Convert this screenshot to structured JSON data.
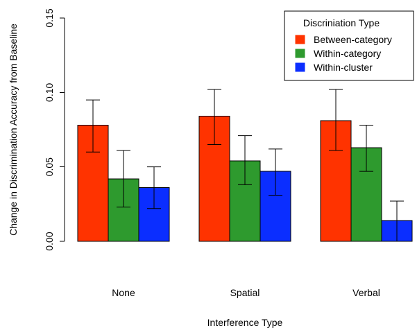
{
  "chart_data": {
    "type": "bar",
    "title": "",
    "xlabel": "Interference Type",
    "ylabel": "Change in Discrimination Accuracy from Baseline",
    "ylim": [
      0,
      0.15
    ],
    "yticks": [
      "0.00",
      "0.05",
      "0.10",
      "0.15"
    ],
    "categories": [
      "None",
      "Spatial",
      "Verbal"
    ],
    "legend": {
      "title": "Discriniation Type",
      "position": "top-right"
    },
    "series": [
      {
        "name": "Between-category",
        "color": "#ff3300",
        "values": [
          0.078,
          0.084,
          0.081
        ],
        "err_low": [
          0.06,
          0.065,
          0.061
        ],
        "err_high": [
          0.095,
          0.102,
          0.102
        ]
      },
      {
        "name": "Within-category",
        "color": "#2e9a2e",
        "values": [
          0.042,
          0.054,
          0.063
        ],
        "err_low": [
          0.023,
          0.038,
          0.047
        ],
        "err_high": [
          0.061,
          0.071,
          0.078
        ]
      },
      {
        "name": "Within-cluster",
        "color": "#0b2eff",
        "values": [
          0.036,
          0.047,
          0.014
        ],
        "err_low": [
          0.022,
          0.031,
          0.0
        ],
        "err_high": [
          0.05,
          0.062,
          0.027
        ]
      }
    ]
  }
}
